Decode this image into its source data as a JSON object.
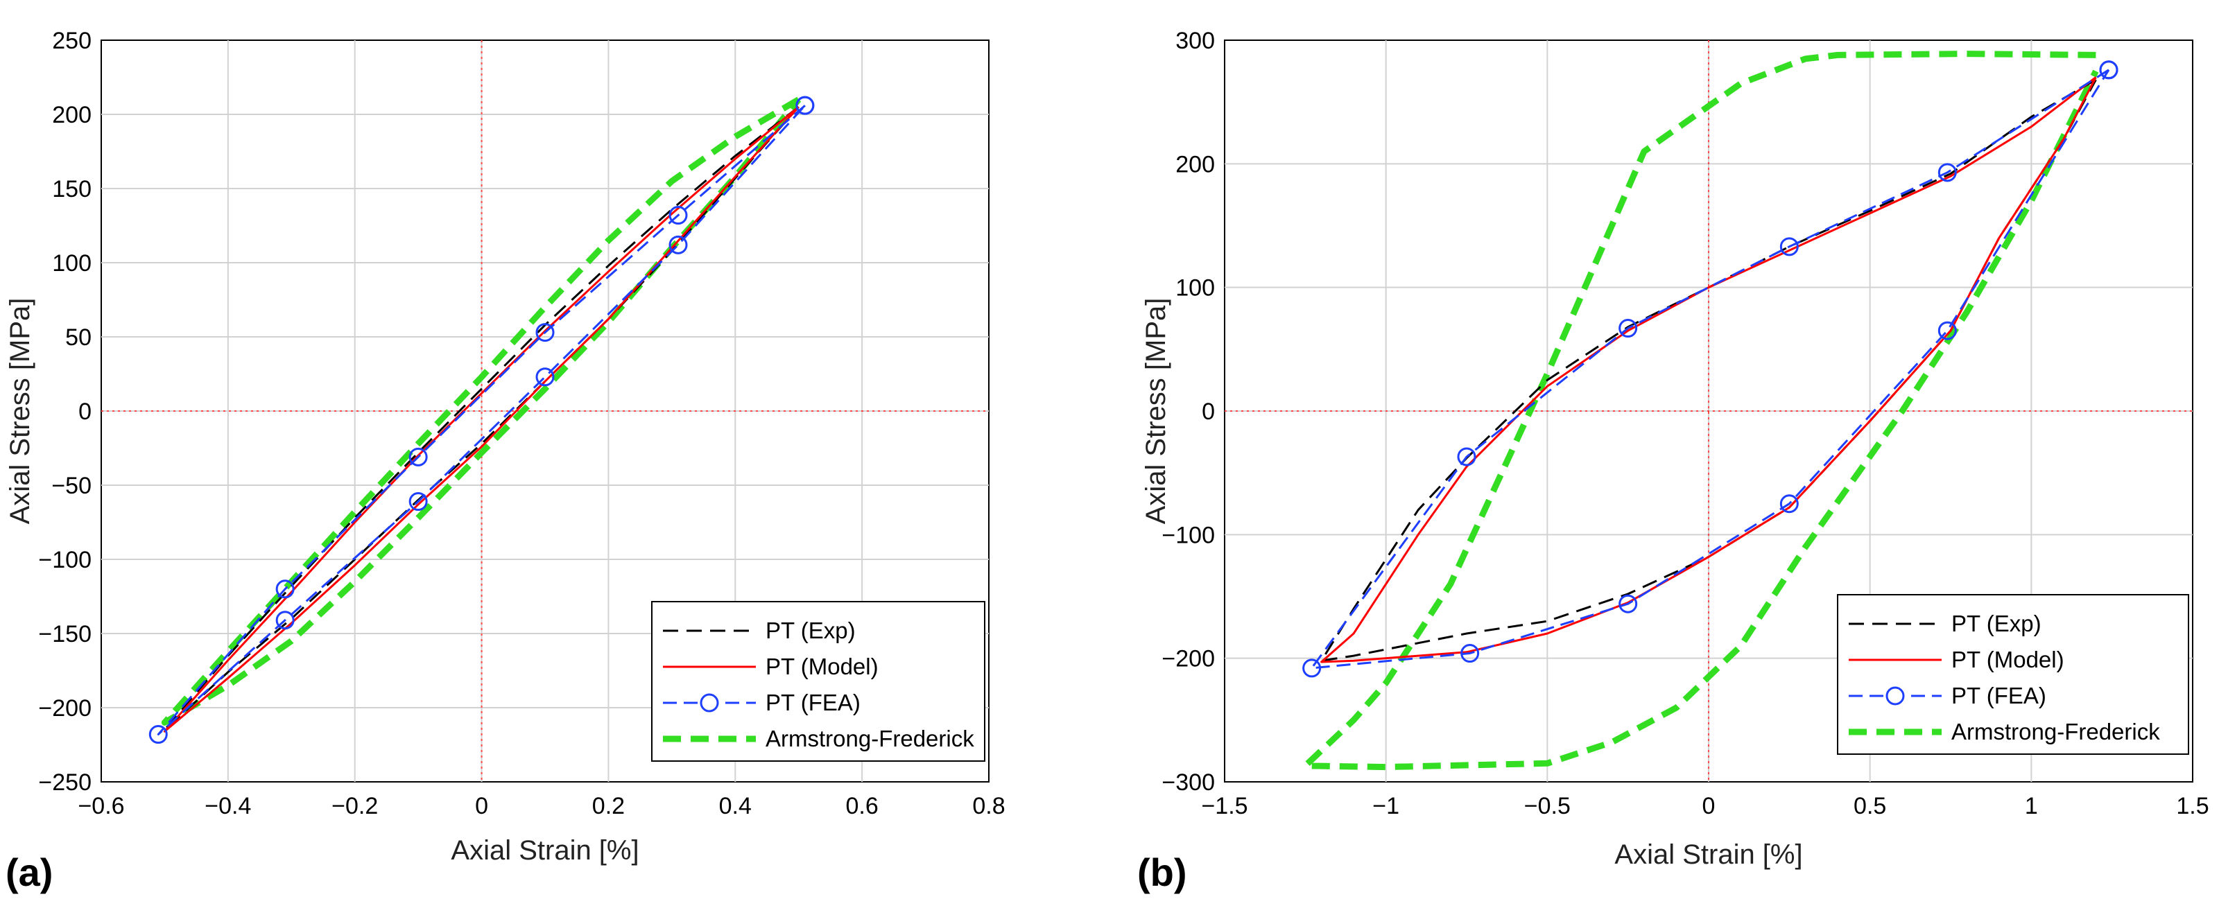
{
  "chart_data": [
    {
      "panel_label": "(a)",
      "type": "line",
      "xlabel": "Axial Strain [%]",
      "ylabel": "Axial Stress [MPa]",
      "xlim": [
        -0.6,
        0.8
      ],
      "ylim": [
        -250,
        250
      ],
      "xticks": [
        -0.6,
        -0.4,
        -0.2,
        0,
        0.2,
        0.4,
        0.6,
        0.8
      ],
      "xtick_labels": [
        "−0.6",
        "−0.4",
        "−0.2",
        "0",
        "0.2",
        "0.4",
        "0.6",
        "0.8"
      ],
      "yticks": [
        -250,
        -200,
        -150,
        -100,
        -50,
        0,
        50,
        100,
        150,
        200,
        250
      ],
      "ytick_labels": [
        "−250",
        "−200",
        "−150",
        "−100",
        "−50",
        "0",
        "50",
        "100",
        "150",
        "200",
        "250"
      ],
      "grid": true,
      "legend_position": "bottom-right",
      "series": [
        {
          "name": "PT (Exp)",
          "color": "#000000",
          "style": "dashed",
          "x": [
            0.5,
            0.4,
            0.3,
            0.2,
            0.1,
            0.0,
            -0.1,
            -0.2,
            -0.3,
            -0.4,
            -0.5,
            -0.4,
            -0.3,
            -0.2,
            -0.1,
            0.0,
            0.1,
            0.2,
            0.3,
            0.4,
            0.5
          ],
          "y": [
            205,
            172,
            136,
            98,
            58,
            15,
            -28,
            -72,
            -118,
            -165,
            -215,
            -176,
            -140,
            -100,
            -60,
            -22,
            20,
            62,
            108,
            157,
            205
          ]
        },
        {
          "name": "PT (Model)",
          "color": "#ff0000",
          "style": "solid",
          "x": [
            0.5,
            0.4,
            0.3,
            0.2,
            0.1,
            0.0,
            -0.1,
            -0.2,
            -0.3,
            -0.4,
            -0.5,
            -0.4,
            -0.3,
            -0.2,
            -0.1,
            0.0,
            0.1,
            0.2,
            0.3,
            0.4,
            0.5
          ],
          "y": [
            205,
            170,
            133,
            94,
            54,
            12,
            -30,
            -75,
            -122,
            -168,
            -216,
            -180,
            -143,
            -104,
            -63,
            -24,
            20,
            62,
            110,
            158,
            205
          ]
        },
        {
          "name": "PT (FEA)",
          "color": "#1f3fff",
          "style": "dash-circle",
          "x": [
            0.51,
            0.31,
            0.1,
            -0.1,
            -0.31,
            -0.51,
            -0.31,
            -0.1,
            0.1,
            0.31,
            0.51
          ],
          "y": [
            206,
            132,
            53,
            -31,
            -120,
            -218,
            -141,
            -61,
            23,
            112,
            206
          ]
        },
        {
          "name": "Armstrong-Frederick",
          "color": "#33dd22",
          "style": "thick-dashed",
          "x": [
            0.5,
            0.4,
            0.3,
            0.2,
            0.1,
            0.0,
            -0.1,
            -0.2,
            -0.3,
            -0.4,
            -0.5,
            -0.4,
            -0.3,
            -0.2,
            -0.1,
            0.0,
            0.1,
            0.2,
            0.3,
            0.4,
            0.5
          ],
          "y": [
            210,
            185,
            155,
            115,
            70,
            23,
            -22,
            -68,
            -115,
            -162,
            -210,
            -185,
            -155,
            -115,
            -72,
            -28,
            15,
            60,
            110,
            158,
            210
          ]
        }
      ],
      "legend": [
        "PT (Exp)",
        "PT (Model)",
        "PT (FEA)",
        "Armstrong-Frederick"
      ]
    },
    {
      "panel_label": "(b)",
      "type": "line",
      "xlabel": "Axial Strain [%]",
      "ylabel": "Axial Stress [MPa]",
      "xlim": [
        -1.5,
        1.5
      ],
      "ylim": [
        -300,
        300
      ],
      "xticks": [
        -1.5,
        -1,
        -0.5,
        0,
        0.5,
        1,
        1.5
      ],
      "xtick_labels": [
        "−1.5",
        "−1",
        "−0.5",
        "0",
        "0.5",
        "1",
        "1.5"
      ],
      "yticks": [
        -300,
        -200,
        -100,
        0,
        100,
        200,
        300
      ],
      "ytick_labels": [
        "−300",
        "−200",
        "−100",
        "0",
        "100",
        "200",
        "300"
      ],
      "grid": true,
      "legend_position": "bottom-right",
      "series": [
        {
          "name": "PT (Exp)",
          "color": "#000000",
          "style": "dashed",
          "x": [
            1.2,
            1.0,
            0.75,
            0.5,
            0.25,
            0.0,
            -0.25,
            -0.5,
            -0.75,
            -0.9,
            -1.1,
            -1.2,
            -1.1,
            -0.75,
            -0.5,
            -0.25,
            0.0,
            0.25,
            0.5,
            0.75,
            0.9,
            1.1,
            1.2
          ],
          "y": [
            268,
            238,
            192,
            162,
            133,
            100,
            68,
            25,
            -38,
            -80,
            -160,
            -202,
            -198,
            -180,
            -170,
            -148,
            -118,
            -78,
            -8,
            65,
            140,
            220,
            268
          ]
        },
        {
          "name": "PT (Model)",
          "color": "#ff0000",
          "style": "solid",
          "x": [
            1.2,
            1.0,
            0.75,
            0.5,
            0.25,
            0.0,
            -0.25,
            -0.5,
            -0.75,
            -0.9,
            -1.1,
            -1.2,
            -1.1,
            -0.75,
            -0.5,
            -0.25,
            0.0,
            0.25,
            0.5,
            0.75,
            0.9,
            1.1,
            1.2
          ],
          "y": [
            270,
            230,
            190,
            160,
            130,
            100,
            65,
            20,
            -45,
            -100,
            -180,
            -203,
            -202,
            -195,
            -180,
            -155,
            -118,
            -78,
            -8,
            65,
            140,
            220,
            270
          ]
        },
        {
          "name": "PT (FEA)",
          "color": "#1f3fff",
          "style": "dash-circle",
          "x": [
            1.24,
            0.74,
            0.25,
            -0.25,
            -0.75,
            -1.23,
            -0.74,
            -0.25,
            0.25,
            0.74,
            1.24
          ],
          "y": [
            276,
            193,
            133,
            67,
            -37,
            -208,
            -196,
            -156,
            -75,
            65,
            276
          ]
        },
        {
          "name": "Armstrong-Frederick",
          "color": "#33dd22",
          "style": "thick-dashed",
          "x": [
            1.2,
            0.8,
            0.4,
            0.3,
            0.1,
            -0.2,
            -0.5,
            -0.8,
            -1.0,
            -1.1,
            -1.25,
            -1.0,
            -0.5,
            -0.3,
            -0.1,
            0.1,
            0.3,
            0.6,
            0.8,
            1.0,
            1.2
          ],
          "y": [
            288,
            289,
            288,
            285,
            265,
            210,
            30,
            -140,
            -220,
            -250,
            -287,
            -288,
            -285,
            -268,
            -240,
            -190,
            -110,
            0,
            80,
            170,
            275
          ]
        }
      ],
      "legend": [
        "PT (Exp)",
        "PT (Model)",
        "PT (FEA)",
        "Armstrong-Frederick"
      ]
    }
  ]
}
